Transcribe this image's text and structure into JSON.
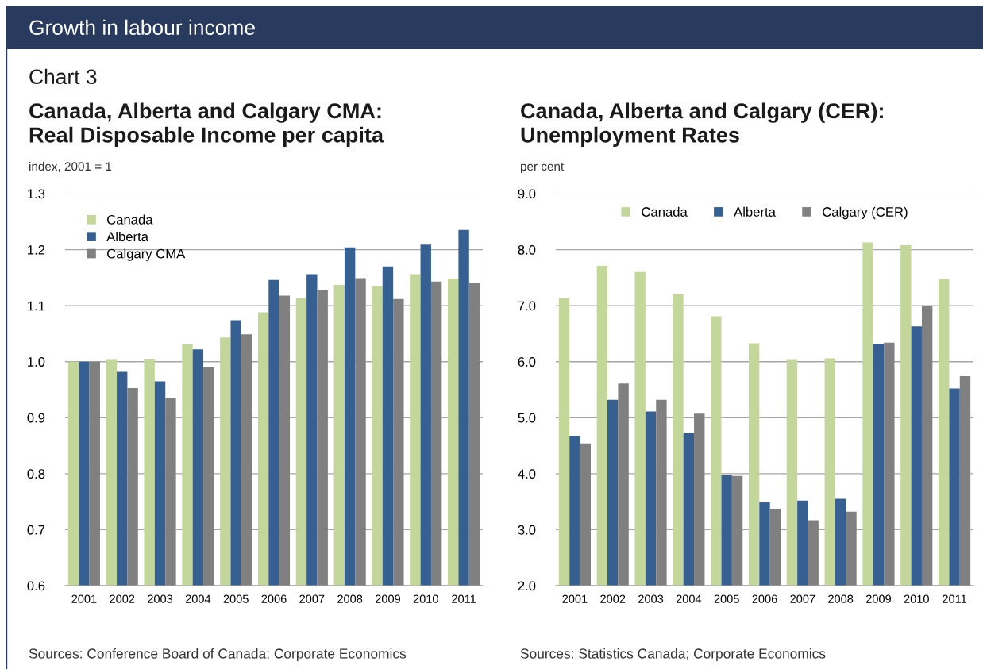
{
  "chart_data": [
    {
      "type": "bar",
      "title": "Canada, Alberta and Calgary CMA:\nReal Disposable Income per capita",
      "ylabel": "index, 2001 = 1",
      "annotations": [
        "Growth in labour income",
        "Chart 3",
        "Sources: Conference Board of Canada; Corporate Economics"
      ],
      "categories": [
        "2001",
        "2002",
        "2003",
        "2004",
        "2005",
        "2006",
        "2007",
        "2008",
        "2009",
        "2010",
        "2011"
      ],
      "series": [
        {
          "name": "Canada",
          "color": "#c4d79b",
          "values": [
            1.0,
            1.003,
            1.004,
            1.031,
            1.043,
            1.088,
            1.113,
            1.137,
            1.135,
            1.156,
            1.148
          ]
        },
        {
          "name": "Alberta",
          "color": "#366092",
          "values": [
            1.0,
            0.982,
            0.965,
            1.022,
            1.074,
            1.146,
            1.156,
            1.204,
            1.17,
            1.209,
            1.235
          ]
        },
        {
          "name": "Calgary CMA",
          "color": "#808080",
          "values": [
            1.0,
            0.953,
            0.936,
            0.991,
            1.049,
            1.118,
            1.127,
            1.149,
            1.112,
            1.143,
            1.141
          ]
        }
      ],
      "ylim": [
        0.6,
        1.3
      ],
      "yticks": [
        0.6,
        0.7,
        0.8,
        0.9,
        {
          "value": 1,
          "label": "1.0"
        },
        1.1,
        1.2,
        1.3
      ],
      "grid": "y",
      "legend": "top left"
    },
    {
      "type": "bar",
      "title": "Canada, Alberta and Calgary (CER):\nUnemployment Rates",
      "ylabel": "per cent",
      "annotations": [
        "Sources: Statistics Canada; Corporate Economics"
      ],
      "categories": [
        "2001",
        "2002",
        "2003",
        "2004",
        "2005",
        "2006",
        "2007",
        "2008",
        "2009",
        "2010",
        "2011"
      ],
      "series": [
        {
          "name": "Canada",
          "color": "#c4d79b",
          "values": [
            7.13,
            7.71,
            7.6,
            7.2,
            6.81,
            6.33,
            6.03,
            6.06,
            8.13,
            8.08,
            7.47
          ]
        },
        {
          "name": "Alberta",
          "color": "#366092",
          "values": [
            4.67,
            5.32,
            5.11,
            4.72,
            3.97,
            3.49,
            3.52,
            3.55,
            6.32,
            6.63,
            5.52
          ]
        },
        {
          "name": "Calgary (CER)",
          "color": "#808080",
          "values": [
            4.54,
            5.61,
            5.32,
            5.07,
            3.96,
            3.37,
            3.17,
            3.32,
            6.34,
            7.0,
            5.74
          ]
        }
      ],
      "ylim": [
        2.0,
        9.0
      ],
      "yticks": [
        {
          "value": 2,
          "label": "2.0"
        },
        {
          "value": 3,
          "label": "3.0"
        },
        {
          "value": 4,
          "label": "4.0"
        },
        {
          "value": 5,
          "label": "5.0"
        },
        {
          "value": 6,
          "label": "6.0"
        },
        {
          "value": 7,
          "label": "7.0"
        },
        {
          "value": 8,
          "label": "8.0"
        },
        {
          "value": 9,
          "label": "9.0"
        }
      ],
      "grid": "y",
      "legend": "top"
    }
  ]
}
